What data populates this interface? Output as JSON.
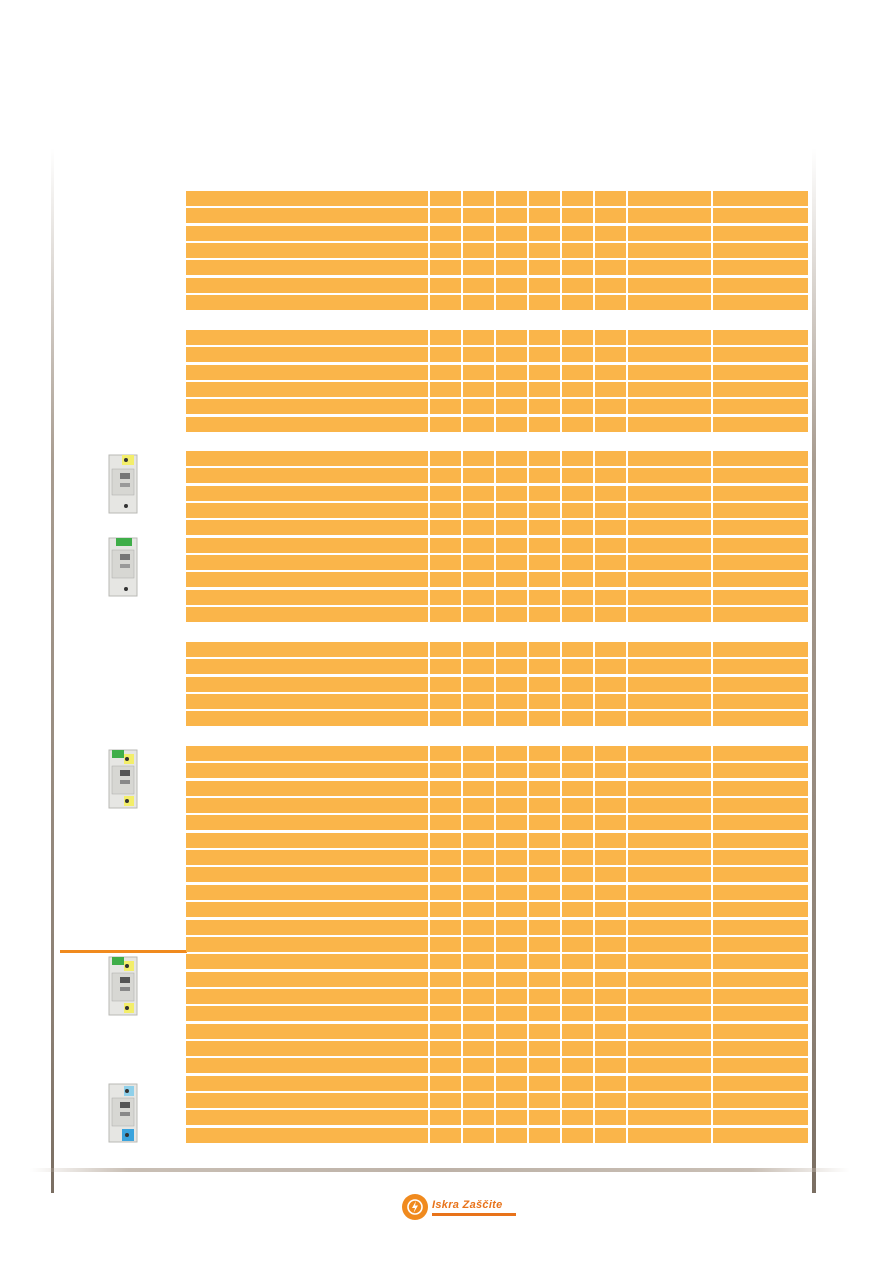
{
  "document": {
    "brand": {
      "logo_text": "Iskra Zaščite",
      "brand_color": "#e8731a"
    },
    "table": {
      "fill_color": "#fab54a",
      "column_count": 9,
      "row_groups": [
        {
          "rows": 7
        },
        {
          "rows": 6
        },
        {
          "rows": 10
        },
        {
          "rows": 5
        },
        {
          "rows": 23
        }
      ]
    },
    "devices": [
      {
        "name": "surge-protector-yellow"
      },
      {
        "name": "surge-protector-green"
      },
      {
        "name": "surge-protector-green-yellow"
      },
      {
        "name": "surge-protector-green-yellow-2"
      },
      {
        "name": "surge-protector-blue"
      }
    ],
    "accent_divider_color": "#f08a1e"
  }
}
